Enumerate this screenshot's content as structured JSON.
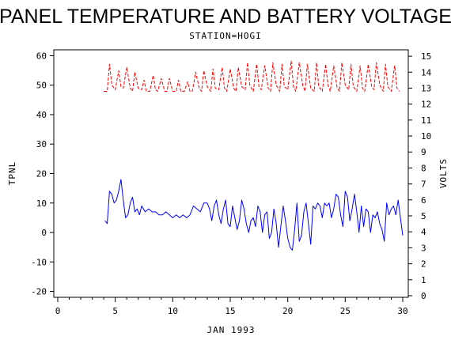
{
  "chart_data": {
    "type": "line",
    "title": "PANEL TEMPERATURE AND BATTERY VOLTAGE",
    "subtitle": "STATION=HOGI",
    "xlabel": "JAN 1993",
    "ylabel_left": "TPNL",
    "ylabel_right": "VOLTS",
    "xlim": [
      0,
      30
    ],
    "x_ticks": [
      0,
      5,
      10,
      15,
      20,
      25,
      30
    ],
    "ylim_left": [
      -22,
      62
    ],
    "y_ticks_left": [
      -20,
      -10,
      0,
      10,
      20,
      30,
      40,
      50,
      60
    ],
    "ylim_right": [
      -0.1,
      15.4
    ],
    "y_ticks_right": [
      0,
      1,
      2,
      3,
      4,
      5,
      6,
      7,
      8,
      9,
      10,
      11,
      12,
      13,
      14,
      15
    ],
    "grid": false,
    "series": [
      {
        "axis": "left",
        "color": "#0000ff",
        "style": "solid",
        "x": [
          4.1,
          4.3,
          4.5,
          4.7,
          4.9,
          5.1,
          5.3,
          5.5,
          5.7,
          5.9,
          6.1,
          6.3,
          6.5,
          6.7,
          6.9,
          7.1,
          7.3,
          7.6,
          7.9,
          8.2,
          8.5,
          8.8,
          9.1,
          9.4,
          9.7,
          10.0,
          10.3,
          10.6,
          10.9,
          11.2,
          11.5,
          11.8,
          12.1,
          12.4,
          12.7,
          13.0,
          13.2,
          13.4,
          13.6,
          13.8,
          14.0,
          14.2,
          14.4,
          14.6,
          14.8,
          15.0,
          15.2,
          15.4,
          15.6,
          15.8,
          16.0,
          16.2,
          16.4,
          16.6,
          16.8,
          17.0,
          17.2,
          17.4,
          17.6,
          17.8,
          18.0,
          18.2,
          18.4,
          18.6,
          18.8,
          19.0,
          19.2,
          19.4,
          19.6,
          19.8,
          20.0,
          20.2,
          20.4,
          20.6,
          20.8,
          21.0,
          21.2,
          21.4,
          21.6,
          21.8,
          22.0,
          22.2,
          22.4,
          22.6,
          22.8,
          23.0,
          23.2,
          23.4,
          23.6,
          23.8,
          24.0,
          24.2,
          24.4,
          24.6,
          24.8,
          25.0,
          25.2,
          25.4,
          25.6,
          25.8,
          26.0,
          26.2,
          26.4,
          26.6,
          26.8,
          27.0,
          27.2,
          27.4,
          27.6,
          27.8,
          28.0,
          28.2,
          28.4,
          28.6,
          28.8,
          29.0,
          29.2,
          29.4,
          29.6,
          29.8,
          30.0
        ],
        "y": [
          4,
          3,
          14,
          13,
          10,
          11,
          14,
          18,
          11,
          5,
          6,
          10,
          12,
          7,
          8,
          6,
          9,
          7,
          8,
          7,
          7,
          6,
          6,
          7,
          6,
          5,
          6,
          5,
          6,
          5,
          6,
          9,
          8,
          7,
          10,
          10,
          8,
          4,
          9,
          11,
          6,
          3,
          8,
          11,
          3,
          2,
          9,
          5,
          1,
          4,
          11,
          8,
          3,
          0,
          4,
          5,
          2,
          9,
          7,
          0,
          6,
          7,
          -2,
          0,
          8,
          3,
          -5,
          2,
          9,
          4,
          -2,
          -5,
          -6,
          1,
          10,
          -3,
          -1,
          7,
          10,
          3,
          -4,
          9,
          8,
          10,
          9,
          5,
          10,
          9,
          10,
          5,
          8,
          13,
          12,
          6,
          2,
          14,
          12,
          4,
          8,
          13,
          7,
          0,
          9,
          2,
          8,
          7,
          0,
          6,
          5,
          7,
          3,
          1,
          -3,
          10,
          6,
          8,
          9,
          6,
          11,
          5,
          -1
        ]
      },
      {
        "axis": "right",
        "color": "#ff0000",
        "style": "dashed",
        "x": [
          4.0,
          4.3,
          4.5,
          4.7,
          5.0,
          5.3,
          5.5,
          5.7,
          6.0,
          6.3,
          6.5,
          6.7,
          7.0,
          7.3,
          7.5,
          7.7,
          8.0,
          8.3,
          8.5,
          8.7,
          9.0,
          9.3,
          9.5,
          9.7,
          10.0,
          10.3,
          10.5,
          10.7,
          11.0,
          11.3,
          11.5,
          11.7,
          12.0,
          12.3,
          12.5,
          12.7,
          13.0,
          13.3,
          13.5,
          13.7,
          14.0,
          14.3,
          14.5,
          14.7,
          15.0,
          15.3,
          15.5,
          15.7,
          16.0,
          16.3,
          16.5,
          16.7,
          17.0,
          17.3,
          17.5,
          17.7,
          18.0,
          18.3,
          18.5,
          18.7,
          19.0,
          19.3,
          19.5,
          19.7,
          20.0,
          20.3,
          20.5,
          20.7,
          21.0,
          21.3,
          21.5,
          21.7,
          22.0,
          22.3,
          22.5,
          22.7,
          23.0,
          23.3,
          23.5,
          23.7,
          24.0,
          24.3,
          24.5,
          24.7,
          25.0,
          25.3,
          25.5,
          25.7,
          26.0,
          26.3,
          26.5,
          26.7,
          27.0,
          27.3,
          27.5,
          27.7,
          28.0,
          28.3,
          28.5,
          28.7,
          29.0,
          29.3,
          29.5,
          29.7
        ],
        "y": [
          12.8,
          12.8,
          14.5,
          13.2,
          12.9,
          14.1,
          13.1,
          13.0,
          14.3,
          13.0,
          12.8,
          14.0,
          13.0,
          12.9,
          13.5,
          12.8,
          12.8,
          13.8,
          12.9,
          12.8,
          13.6,
          12.8,
          12.8,
          13.6,
          12.8,
          12.8,
          13.5,
          12.8,
          12.8,
          13.4,
          12.8,
          12.8,
          14.0,
          13.0,
          12.8,
          14.1,
          13.1,
          12.8,
          14.2,
          13.0,
          12.9,
          14.3,
          13.0,
          12.8,
          14.2,
          13.0,
          12.8,
          14.3,
          13.1,
          12.9,
          14.6,
          13.2,
          12.8,
          14.5,
          13.1,
          12.9,
          14.4,
          13.0,
          12.8,
          14.6,
          13.2,
          12.8,
          14.5,
          13.1,
          12.9,
          14.7,
          13.1,
          12.8,
          14.6,
          13.2,
          12.8,
          14.5,
          13.0,
          12.8,
          14.6,
          13.1,
          12.8,
          14.5,
          13.2,
          12.8,
          14.4,
          13.0,
          12.8,
          14.6,
          13.2,
          12.9,
          14.5,
          13.1,
          12.8,
          14.4,
          13.0,
          12.8,
          14.5,
          13.1,
          12.9,
          14.6,
          13.2,
          12.8,
          14.5,
          13.1,
          12.8,
          14.4,
          13.0,
          12.8
        ]
      }
    ]
  }
}
